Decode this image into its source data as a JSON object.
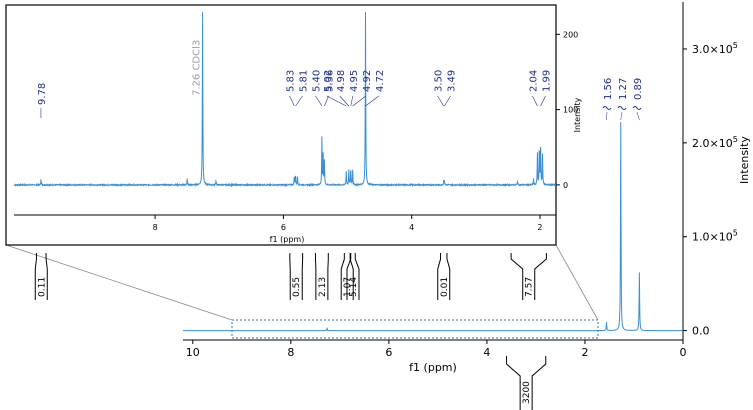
{
  "chart_data": [
    {
      "type": "line",
      "xlabel": "f1 (ppm)",
      "ylabel": "Intensity",
      "xlim": [
        10.2,
        0
      ],
      "ylim": [
        -10000,
        350000
      ],
      "x_ticks": [
        "10",
        "8",
        "6",
        "4",
        "2",
        "0"
      ],
      "y_ticks": [
        {
          "v": 0,
          "m": "0.0",
          "e": ""
        },
        {
          "v": 100000,
          "m": "1.0×10",
          "e": "5"
        },
        {
          "v": 200000,
          "m": "2.0×10",
          "e": "5"
        },
        {
          "v": 300000,
          "m": "3.0×10",
          "e": "5"
        }
      ],
      "peaks": [
        {
          "x": 7.26,
          "y": 3000
        },
        {
          "x": 1.56,
          "y": 9000
        },
        {
          "x": 1.27,
          "y": 222000
        },
        {
          "x": 0.89,
          "y": 62000
        }
      ],
      "peak_labels": [
        "1.56",
        "1.27",
        "0.89"
      ],
      "integrals": [
        {
          "from": 3.6,
          "to": 2.8,
          "label": "3200"
        }
      ]
    },
    {
      "type": "line",
      "xlabel": "f1 (ppm)",
      "ylabel": "Intensity",
      "xlim": [
        10.2,
        1.75
      ],
      "ylim": [
        -40,
        235
      ],
      "x_ticks": [
        "8",
        "6",
        "4",
        "2"
      ],
      "y_ticks": [
        "0",
        "100",
        "200"
      ],
      "solvent_label": "7.26 CDCl3",
      "peaks": [
        {
          "x": 9.78,
          "y": 8
        },
        {
          "x": 7.5,
          "y": 8
        },
        {
          "x": 7.26,
          "y": 240
        },
        {
          "x": 7.05,
          "y": 6
        },
        {
          "x": 5.83,
          "y": 12
        },
        {
          "x": 5.81,
          "y": 14
        },
        {
          "x": 5.78,
          "y": 10
        },
        {
          "x": 5.4,
          "y": 62
        },
        {
          "x": 5.38,
          "y": 40
        },
        {
          "x": 5.36,
          "y": 32
        },
        {
          "x": 5.02,
          "y": 18
        },
        {
          "x": 4.98,
          "y": 20
        },
        {
          "x": 4.95,
          "y": 22
        },
        {
          "x": 4.92,
          "y": 20
        },
        {
          "x": 4.72,
          "y": 240
        },
        {
          "x": 3.5,
          "y": 6
        },
        {
          "x": 3.49,
          "y": 6
        },
        {
          "x": 2.35,
          "y": 5
        },
        {
          "x": 2.1,
          "y": 8
        },
        {
          "x": 2.04,
          "y": 42
        },
        {
          "x": 2.01,
          "y": 52
        },
        {
          "x": 1.99,
          "y": 58
        },
        {
          "x": 1.96,
          "y": 40
        }
      ],
      "peak_labels": [
        {
          "x": 9.78,
          "label": "9.78"
        },
        {
          "x": 5.83,
          "label": "5.83"
        },
        {
          "x": 5.81,
          "label": "5.81"
        },
        {
          "x": 5.4,
          "label": "5.40"
        },
        {
          "x": 5.36,
          "label": "5.36"
        },
        {
          "x": 5.02,
          "label": "5.02"
        },
        {
          "x": 4.98,
          "label": "4.98"
        },
        {
          "x": 4.95,
          "label": "4.95"
        },
        {
          "x": 4.92,
          "label": "4.92"
        },
        {
          "x": 4.72,
          "label": "4.72"
        },
        {
          "x": 3.5,
          "label": "3.50"
        },
        {
          "x": 3.49,
          "label": "3.49"
        },
        {
          "x": 2.04,
          "label": "2.04"
        },
        {
          "x": 1.99,
          "label": "1.99"
        }
      ],
      "integrals": [
        {
          "from": 9.85,
          "to": 9.7,
          "label": "0.11"
        },
        {
          "from": 5.9,
          "to": 5.7,
          "label": "0.55"
        },
        {
          "from": 5.5,
          "to": 5.3,
          "label": "2.13"
        },
        {
          "from": 5.05,
          "to": 4.96,
          "label": "1.07"
        },
        {
          "from": 4.95,
          "to": 4.88,
          "label": "5.14"
        },
        {
          "from": 3.55,
          "to": 3.45,
          "label": "0.01"
        },
        {
          "from": 2.45,
          "to": 1.9,
          "label": "7.57"
        }
      ]
    }
  ]
}
